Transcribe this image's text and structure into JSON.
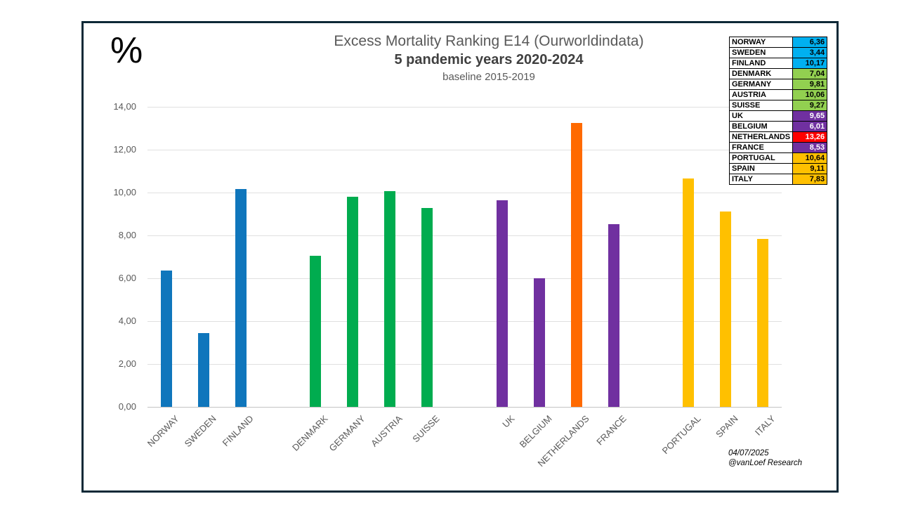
{
  "footer": {
    "date": "04/07/2025",
    "credit": "@vanLoef Research"
  },
  "chart_data": {
    "type": "bar",
    "title": "Excess Mortality Ranking E14 (Ourworldindata)",
    "subtitle": "5 pandemic years 2020-2024",
    "note": "baseline 2015-2019",
    "ylabel": "%",
    "xlabel": "",
    "ylim": [
      0,
      14
    ],
    "grid": true,
    "yticks": [
      {
        "value": 0,
        "label": "0,00"
      },
      {
        "value": 2,
        "label": "2,00"
      },
      {
        "value": 4,
        "label": "4,00"
      },
      {
        "value": 6,
        "label": "6,00"
      },
      {
        "value": 8,
        "label": "8,00"
      },
      {
        "value": 10,
        "label": "10,00"
      },
      {
        "value": 12,
        "label": "12,00"
      },
      {
        "value": 14,
        "label": "14,00"
      }
    ],
    "total_slots": 17,
    "categories": [
      "NORWAY",
      "SWEDEN",
      "FINLAND",
      "DENMARK",
      "GERMANY",
      "AUSTRIA",
      "SUISSE",
      "UK",
      "BELGIUM",
      "NETHERLANDS",
      "FRANCE",
      "PORTUGAL",
      "SPAIN",
      "ITALY"
    ],
    "slots": [
      0,
      1,
      2,
      4,
      5,
      6,
      7,
      9,
      10,
      11,
      12,
      14,
      15,
      16
    ],
    "values": [
      6.36,
      3.44,
      10.17,
      7.04,
      9.81,
      10.06,
      9.27,
      9.65,
      6.01,
      13.26,
      8.53,
      10.64,
      9.11,
      7.83
    ],
    "value_labels": [
      "6,36",
      "3,44",
      "10,17",
      "7,04",
      "9,81",
      "10,06",
      "9,27",
      "9,65",
      "6,01",
      "13,26",
      "8,53",
      "10,64",
      "9,11",
      "7,83"
    ],
    "colors": [
      "#0F76BC",
      "#0F76BC",
      "#0F76BC",
      "#00AC4F",
      "#00AC4F",
      "#00AC4F",
      "#00AC4F",
      "#7030A0",
      "#7030A0",
      "#FF6A00",
      "#7030A0",
      "#FFC000",
      "#FFC000",
      "#FFC000"
    ],
    "legend": {
      "position": "top-right",
      "rows": [
        {
          "label": "NORWAY",
          "value": "6,36",
          "color": "#00B0F0",
          "text_color": "#000000"
        },
        {
          "label": "SWEDEN",
          "value": "3,44",
          "color": "#00B0F0",
          "text_color": "#000000"
        },
        {
          "label": "FINLAND",
          "value": "10,17",
          "color": "#00B0F0",
          "text_color": "#000000"
        },
        {
          "label": "DENMARK",
          "value": "7,04",
          "color": "#92D050",
          "text_color": "#000000"
        },
        {
          "label": "GERMANY",
          "value": "9,81",
          "color": "#92D050",
          "text_color": "#000000"
        },
        {
          "label": "AUSTRIA",
          "value": "10,06",
          "color": "#92D050",
          "text_color": "#000000"
        },
        {
          "label": "SUISSE",
          "value": "9,27",
          "color": "#92D050",
          "text_color": "#000000"
        },
        {
          "label": "UK",
          "value": "9,65",
          "color": "#7030A0",
          "text_color": "#FFFFFF"
        },
        {
          "label": "BELGIUM",
          "value": "6,01",
          "color": "#7030A0",
          "text_color": "#FFFFFF"
        },
        {
          "label": "NETHERLANDS",
          "value": "13,26",
          "color": "#FF0000",
          "text_color": "#FFFFFF"
        },
        {
          "label": "FRANCE",
          "value": "8,53",
          "color": "#7030A0",
          "text_color": "#FFFFFF"
        },
        {
          "label": "PORTUGAL",
          "value": "10,64",
          "color": "#FFC000",
          "text_color": "#000000"
        },
        {
          "label": "SPAIN",
          "value": "9,11",
          "color": "#FFC000",
          "text_color": "#000000"
        },
        {
          "label": "ITALY",
          "value": "7,83",
          "color": "#FFC000",
          "text_color": "#000000"
        }
      ]
    }
  }
}
